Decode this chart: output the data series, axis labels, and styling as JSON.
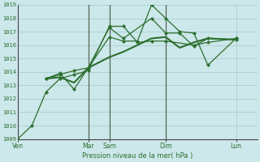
{
  "title": "",
  "xlabel": "Pression niveau de la mer( hPa )",
  "ylabel": "",
  "bg_color": "#cce8ea",
  "grid_color": "#aacdd0",
  "line_color": "#2d6e2d",
  "vline_color": "#556655",
  "ylim": [
    1009,
    1019
  ],
  "yticks": [
    1009,
    1010,
    1011,
    1012,
    1013,
    1014,
    1015,
    1016,
    1017,
    1018,
    1019
  ],
  "x_tick_labels": [
    "Ven",
    "Mar",
    "Sam",
    "Dim",
    "Lun"
  ],
  "x_tick_positions": [
    0,
    10,
    13,
    21,
    31
  ],
  "vlines_x": [
    10,
    13,
    21
  ],
  "xlim": [
    0,
    34
  ],
  "series": [
    {
      "x": [
        0,
        2,
        4,
        6,
        8,
        10,
        13,
        15,
        17,
        19,
        21,
        25,
        27,
        31
      ],
      "y": [
        1009.0,
        1010.0,
        1012.5,
        1013.5,
        1013.8,
        1014.1,
        1017.4,
        1017.4,
        1016.2,
        1016.3,
        1016.3,
        1016.0,
        1016.2,
        1016.5
      ],
      "marker": "D",
      "lw": 0.9,
      "ms": 2.2,
      "has_marker": true
    },
    {
      "x": [
        4,
        6,
        8,
        10,
        13,
        15,
        17,
        19,
        21,
        23,
        25,
        27,
        31
      ],
      "y": [
        1013.5,
        1013.8,
        1014.1,
        1014.3,
        1016.6,
        1016.3,
        1016.3,
        1019.0,
        1018.0,
        1017.0,
        1016.9,
        1014.5,
        1016.5
      ],
      "marker": "D",
      "lw": 0.9,
      "ms": 2.2,
      "has_marker": true
    },
    {
      "x": [
        4,
        6,
        8,
        10,
        13,
        15,
        19,
        21,
        23,
        25,
        27,
        31
      ],
      "y": [
        1013.5,
        1013.9,
        1012.7,
        1014.3,
        1017.3,
        1016.5,
        1018.0,
        1016.9,
        1016.9,
        1015.9,
        1016.5,
        1016.4
      ],
      "marker": "D",
      "lw": 0.9,
      "ms": 2.2,
      "has_marker": true
    },
    {
      "x": [
        4,
        6,
        8,
        10,
        13,
        15,
        17,
        19,
        21,
        23,
        25,
        27,
        31
      ],
      "y": [
        1013.5,
        1013.6,
        1013.2,
        1014.3,
        1015.1,
        1015.5,
        1016.0,
        1016.5,
        1016.6,
        1015.8,
        1016.2,
        1016.5,
        1016.4
      ],
      "marker": null,
      "lw": 1.5,
      "ms": 0,
      "has_marker": false
    }
  ]
}
